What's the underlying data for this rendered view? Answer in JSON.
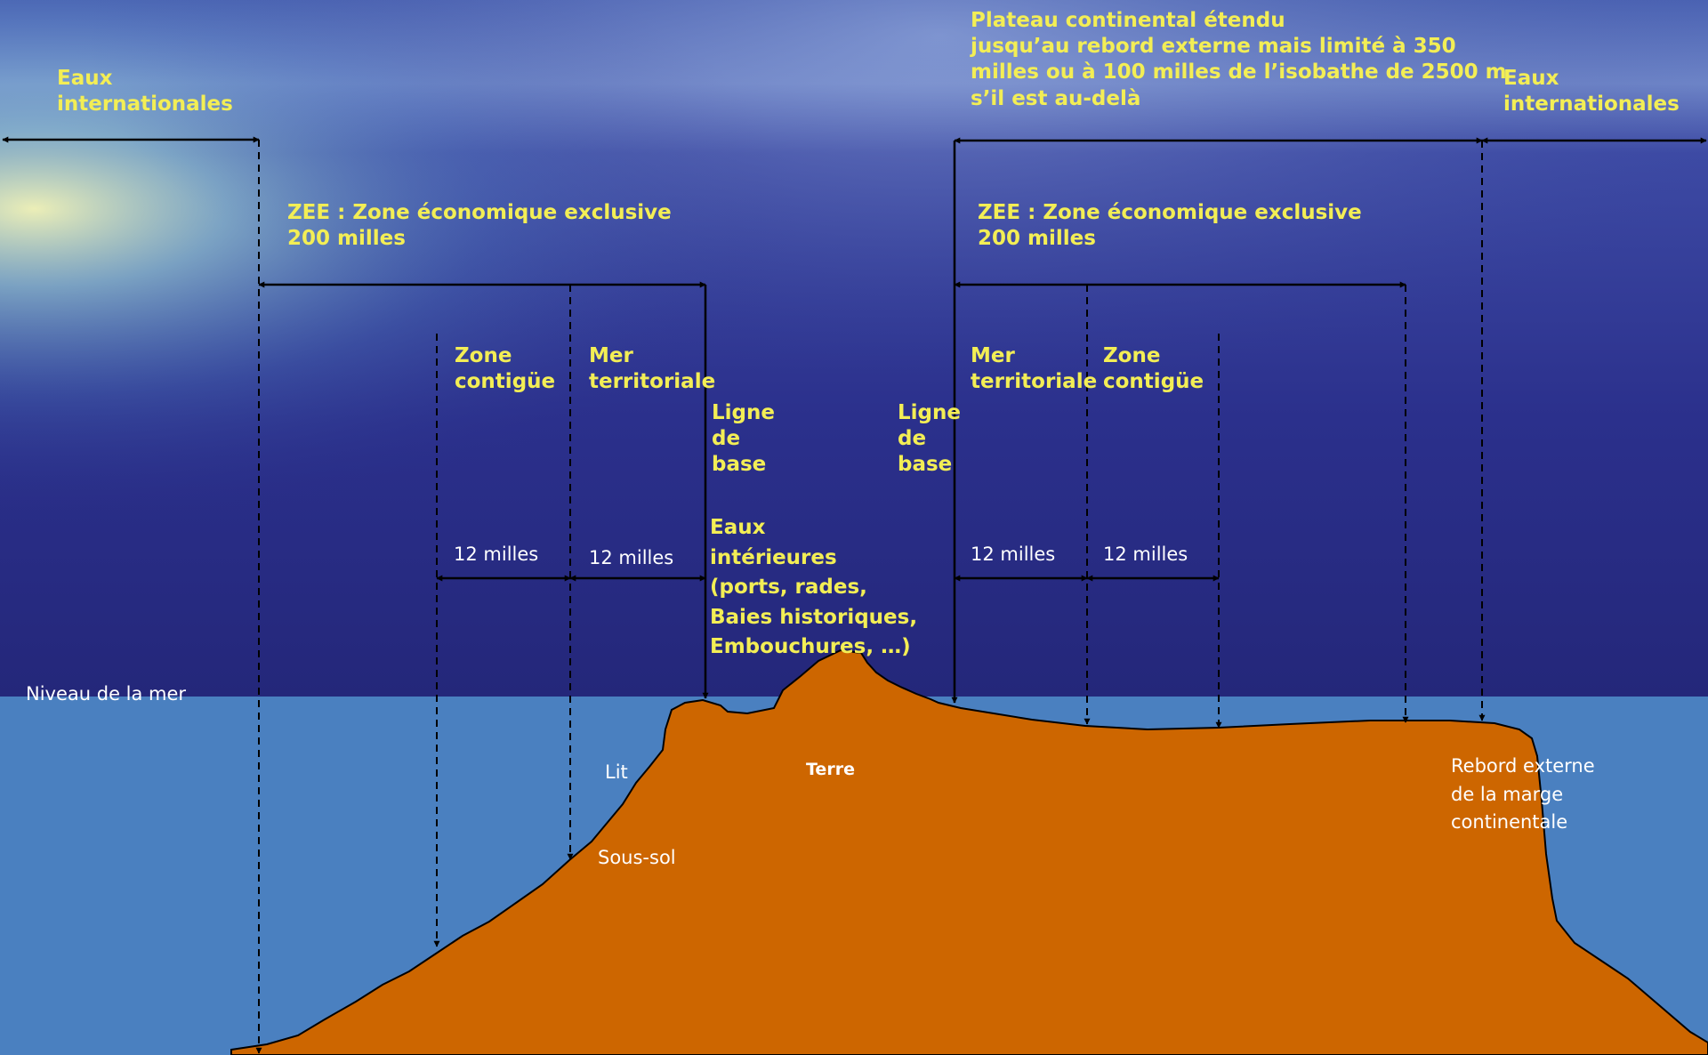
{
  "colors": {
    "sky_top": "#3a4c9e",
    "sky_mid": "#2a2f86",
    "sea": "#4a80c0",
    "land": "#cd6600",
    "label_yellow": "#f3ee55",
    "label_white": "#ffffff",
    "line": "#000000"
  },
  "labels": {
    "eaux_internationales_left": "Eaux\ninternationales",
    "eaux_internationales_right": "Eaux\ninternationales",
    "plateau_continental": "Plateau continental étendu\njusqu’au rebord externe mais limité à 350\nmilles ou à 100 milles de l’isobathe de 2500 m\ns’il est au-delà",
    "zee_left": "ZEE : Zone économique exclusive\n200 milles",
    "zee_right": "ZEE : Zone économique exclusive\n200 milles",
    "zone_contigue_left": "Zone\ncontigüe",
    "zone_contigue_right": "Zone\ncontigüe",
    "mer_territoriale_left": "Mer\nterritoriale",
    "mer_territoriale_right": "Mer\nterritoriale",
    "ligne_de_base_left": "Ligne\nde\nbase",
    "ligne_de_base_right": "Ligne\nde\nbase",
    "eaux_interieures": "Eaux\nintérieures\n(ports, rades,\nBaies historiques,\nEmbouchures, …)",
    "douze_milles_1": "12 milles",
    "douze_milles_2": "12 milles",
    "douze_milles_3": "12 milles",
    "douze_milles_4": "12 milles",
    "niveau_mer": "Niveau de la mer",
    "lit": "Lit",
    "sous_sol": "Sous-sol",
    "terre": "Terre",
    "rebord_externe": "Rebord externe\nde la marge\ncontinentale"
  }
}
